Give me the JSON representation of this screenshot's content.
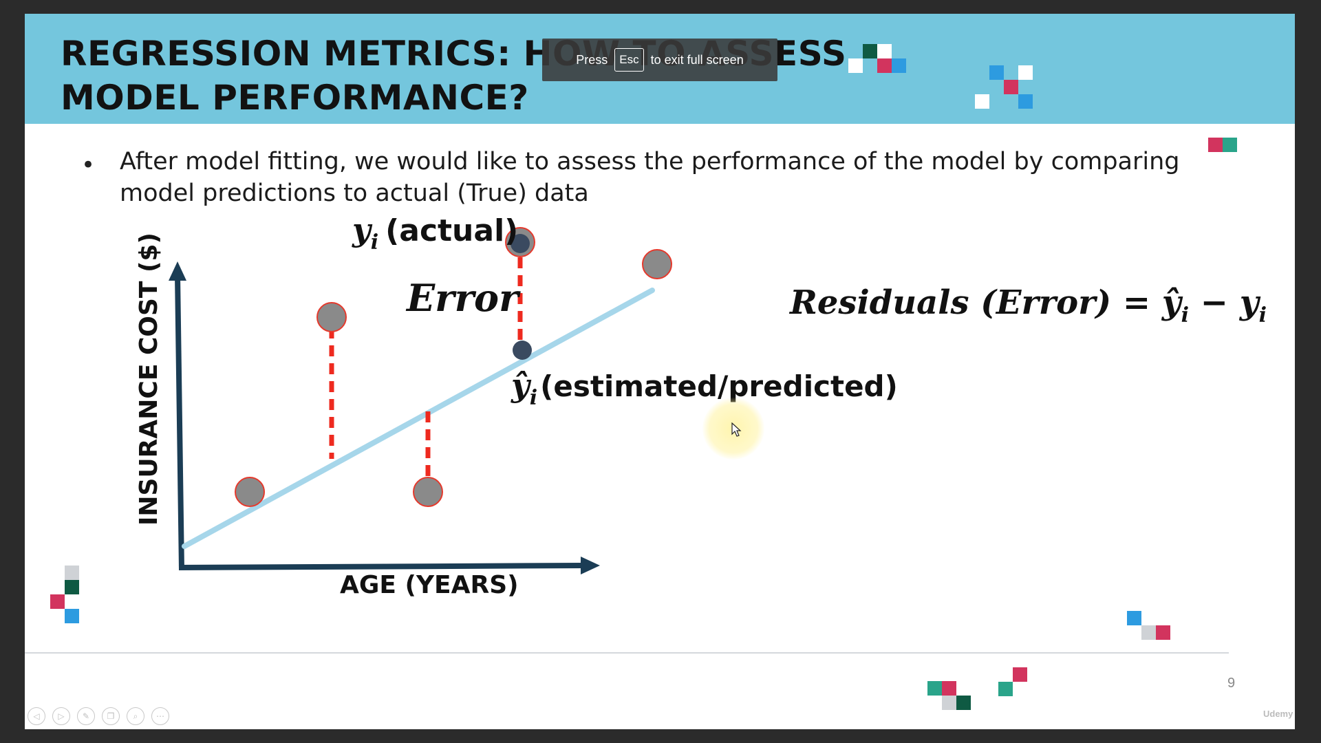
{
  "slide": {
    "title_line1": "REGRESSION METRICS: HOW TO ASSESS",
    "title_line2": "MODEL PERFORMANCE?",
    "bullet": "After model fitting, we would like to assess the performance of the model by comparing model predictions to actual (True) data",
    "page_number": "9"
  },
  "diagram": {
    "y_axis_label": "INSURANCE COST ($)",
    "x_axis_label": "AGE (YEARS)",
    "actual_symbol": "y",
    "actual_subscript": "i",
    "actual_label": "(actual)",
    "error_label": "Error",
    "predicted_symbol": "ŷ",
    "predicted_subscript": "i",
    "predicted_label": "(estimated/predicted)",
    "formula_lhs": "Residuals (Error) = ",
    "formula_yhat": "ŷ",
    "formula_minus": " − ",
    "formula_y": "y",
    "formula_sub": "i",
    "colors": {
      "axis": "#1b3d55",
      "regression_line": "#a6d6ea",
      "data_point": "#8a8a8a",
      "data_point_outline": "#e5392c",
      "predicted_point": "#3a4a60",
      "residual": "#ee2a1f"
    }
  },
  "toast": {
    "press": "Press",
    "key": "Esc",
    "suffix": "to exit full screen"
  },
  "player": {
    "controls": [
      "previous-icon",
      "play-icon",
      "pen-icon",
      "copy-icon",
      "zoom-icon",
      "more-icon"
    ],
    "watermark": "Udemy"
  },
  "decor_colors": {
    "teal": "#2aa48a",
    "crimson": "#d2345e",
    "dark_green": "#0f5a43",
    "blue": "#2d9be0",
    "light_gray": "#cfd2d6",
    "white": "#ffffff"
  }
}
